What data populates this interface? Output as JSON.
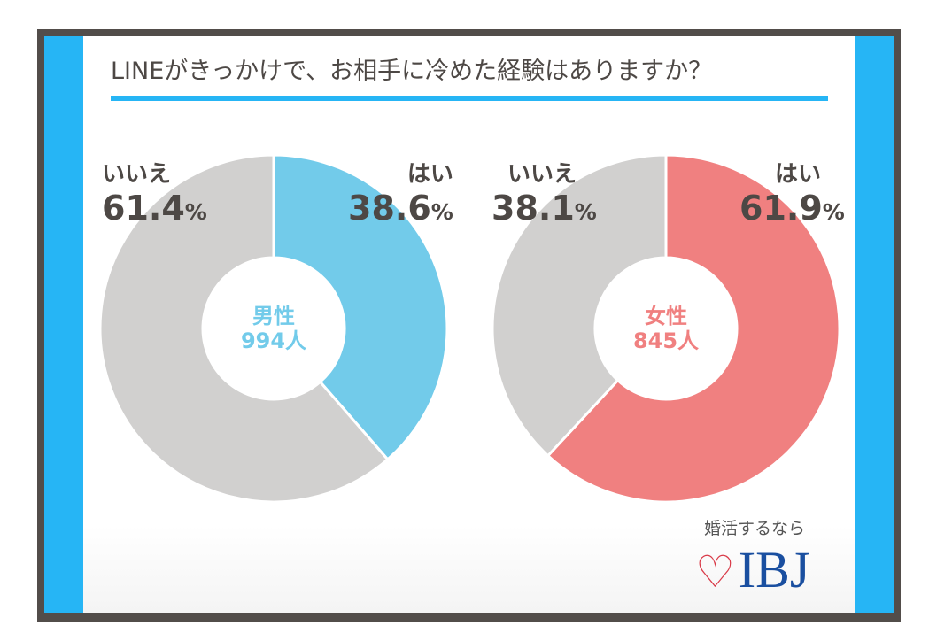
{
  "title": "LINEがきっかけで、お相手に冷めた経験はありますか？",
  "chart_data": [
    {
      "type": "pie",
      "title": "男性",
      "center_label": "男性",
      "center_count": "994人",
      "categories": [
        "はい",
        "いいえ"
      ],
      "values": [
        38.6,
        61.4
      ],
      "colors": [
        "#72cbea",
        "#d1d0cf"
      ],
      "labels": [
        "38.6",
        "61.4"
      ]
    },
    {
      "type": "pie",
      "title": "女性",
      "center_label": "女性",
      "center_count": "845人",
      "categories": [
        "はい",
        "いいえ"
      ],
      "values": [
        61.9,
        38.1
      ],
      "colors": [
        "#f08080",
        "#d1d0cf"
      ],
      "labels": [
        "61.9",
        "38.1"
      ]
    }
  ],
  "percent_sign": "%",
  "accent": {
    "male": "#72cbea",
    "female": "#f08080"
  },
  "brand": {
    "tagline": "婚活するなら",
    "logo": "IBJ"
  }
}
